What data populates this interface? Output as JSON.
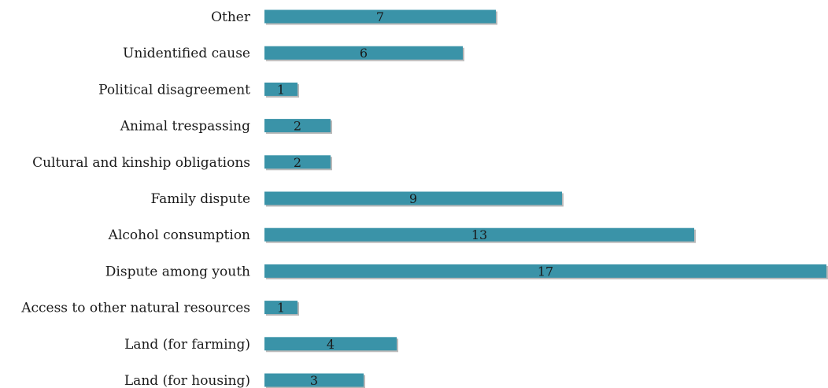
{
  "chart_data": {
    "type": "bar",
    "orientation": "horizontal",
    "categories": [
      "Other",
      "Unidentified cause",
      "Political disagreement",
      "Animal trespassing",
      "Cultural and kinship obligations",
      "Family dispute",
      "Alcohol consumption",
      "Dispute among youth",
      "Access to other natural resources",
      "Land (for farming)",
      "Land (for housing)"
    ],
    "values": [
      7,
      6,
      1,
      2,
      2,
      9,
      13,
      17,
      1,
      4,
      3
    ],
    "xlim": [
      0,
      17
    ],
    "grid": false,
    "legend": "none",
    "bar_color": "#3a93a8",
    "shadow_color": "#b9b9b9"
  }
}
